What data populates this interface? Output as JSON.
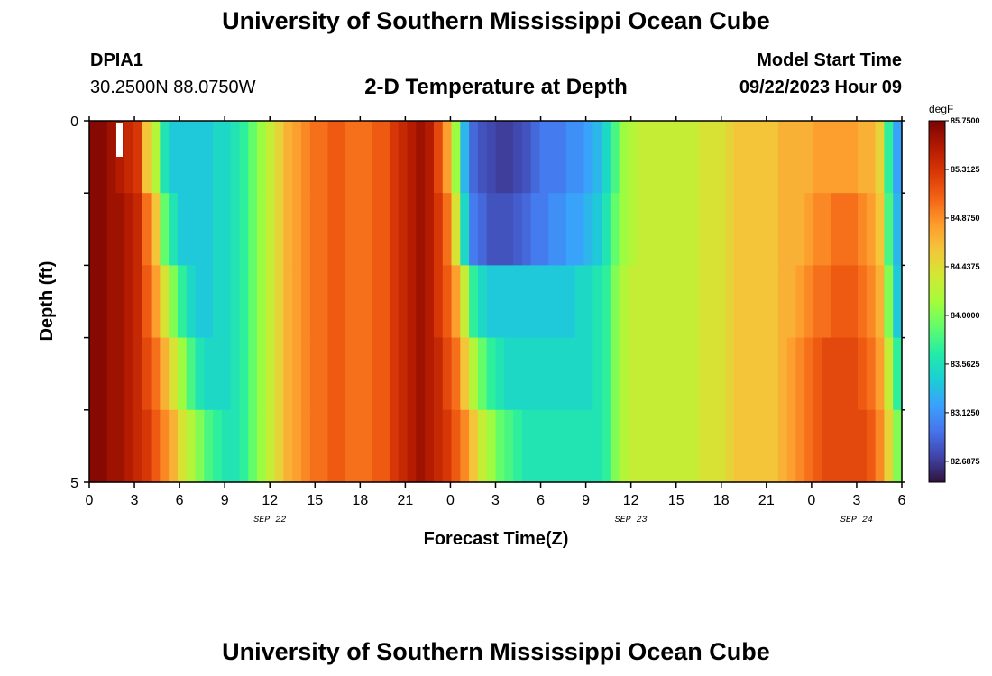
{
  "header": {
    "title": "University of Southern Mississippi Ocean Cube",
    "station_id": "DPIA1",
    "coordinates": "30.2500N  88.0750W",
    "plot_title": "2-D Temperature at Depth",
    "model_start_label": "Model Start Time",
    "model_start_value": "09/22/2023 Hour 09"
  },
  "footer": {
    "title": "University of Southern Mississippi Ocean Cube"
  },
  "chart_data": {
    "type": "heatmap",
    "title": "2-D Temperature at Depth",
    "xlabel": "Forecast Time(Z)",
    "ylabel": "Depth (ft)",
    "x_tick_labels": [
      "0",
      "3",
      "6",
      "9",
      "12",
      "15",
      "18",
      "21",
      "0",
      "3",
      "6",
      "9",
      "12",
      "15",
      "18",
      "21",
      "0",
      "3",
      "6"
    ],
    "y_tick_labels": [
      "0",
      "5"
    ],
    "ylim": [
      0,
      5
    ],
    "date_labels": [
      {
        "label": "SEP 22",
        "hour": 12
      },
      {
        "label": "SEP 23",
        "hour": 36
      },
      {
        "label": "SEP 24",
        "hour": 51
      }
    ],
    "hours_total": 54,
    "depth_layers": 5,
    "colorbar": {
      "unit": "degF",
      "min": 82.5,
      "max": 85.75,
      "tick_labels": [
        "85.7500",
        "85.3125",
        "84.8750",
        "84.4375",
        "84.0000",
        "83.5625",
        "83.1250",
        "82.6875"
      ],
      "colors": [
        "#30123b",
        "#4145ab",
        "#4675ed",
        "#39a2fc",
        "#1bcfd4",
        "#24eca6",
        "#61fc6c",
        "#a4fc3b",
        "#d1e834",
        "#f3c63a",
        "#fe9b2d",
        "#f36315",
        "#d93806",
        "#b11901",
        "#7a0403"
      ]
    },
    "values": [
      [
        85.7,
        85.7,
        85.6,
        85.5,
        85.4,
        85.3,
        84.6,
        84.2,
        83.6,
        83.4,
        83.4,
        83.4,
        83.4,
        83.4,
        83.5,
        83.5,
        83.6,
        83.7,
        83.9,
        84.1,
        84.3,
        84.5,
        84.7,
        84.8,
        84.9,
        85.0,
        85.0,
        85.1,
        85.1,
        85.0,
        85.0,
        85.0,
        85.1,
        85.1,
        85.3,
        85.4,
        85.5,
        85.6,
        85.5,
        85.2,
        84.8,
        84.1,
        83.3,
        82.9,
        82.8,
        82.75,
        82.7,
        82.7,
        82.75,
        82.8,
        82.9,
        83.0,
        83.0,
        83.0,
        83.1,
        83.1,
        83.2,
        83.3,
        83.5,
        83.8,
        84.1,
        84.2,
        84.3,
        84.3,
        84.3,
        84.3,
        84.3,
        84.3,
        84.3,
        84.4,
        84.4,
        84.4,
        84.5,
        84.6,
        84.6,
        84.6,
        84.6,
        84.6,
        84.7,
        84.7,
        84.7,
        84.7,
        84.8,
        84.8,
        84.8,
        84.8,
        84.8,
        84.7,
        84.7,
        84.5,
        83.7,
        83.2
      ],
      [
        85.7,
        85.7,
        85.6,
        85.6,
        85.5,
        85.4,
        85.0,
        84.6,
        83.9,
        83.6,
        83.4,
        83.4,
        83.4,
        83.4,
        83.5,
        83.5,
        83.6,
        83.7,
        83.9,
        84.1,
        84.3,
        84.5,
        84.7,
        84.8,
        84.9,
        85.0,
        85.0,
        85.1,
        85.1,
        85.0,
        85.0,
        85.0,
        85.1,
        85.1,
        85.3,
        85.4,
        85.5,
        85.6,
        85.5,
        85.3,
        85.0,
        84.4,
        83.5,
        83.0,
        82.9,
        82.8,
        82.8,
        82.8,
        82.85,
        82.9,
        83.0,
        83.0,
        83.1,
        83.1,
        83.2,
        83.2,
        83.3,
        83.4,
        83.6,
        83.9,
        84.1,
        84.2,
        84.3,
        84.3,
        84.3,
        84.3,
        84.3,
        84.3,
        84.3,
        84.4,
        84.4,
        84.4,
        84.5,
        84.6,
        84.6,
        84.6,
        84.6,
        84.6,
        84.7,
        84.7,
        84.7,
        84.8,
        84.9,
        84.9,
        85.0,
        85.0,
        85.0,
        84.9,
        84.8,
        84.6,
        83.8,
        83.3
      ],
      [
        85.7,
        85.7,
        85.6,
        85.6,
        85.5,
        85.4,
        85.1,
        84.8,
        84.4,
        84.0,
        83.7,
        83.5,
        83.4,
        83.4,
        83.5,
        83.5,
        83.6,
        83.7,
        83.9,
        84.1,
        84.3,
        84.5,
        84.7,
        84.8,
        84.9,
        85.0,
        85.0,
        85.1,
        85.1,
        85.0,
        85.0,
        85.0,
        85.1,
        85.1,
        85.3,
        85.4,
        85.5,
        85.6,
        85.5,
        85.3,
        85.1,
        84.8,
        84.3,
        83.7,
        83.5,
        83.4,
        83.4,
        83.4,
        83.4,
        83.4,
        83.4,
        83.4,
        83.4,
        83.4,
        83.4,
        83.5,
        83.5,
        83.6,
        83.7,
        84.0,
        84.2,
        84.3,
        84.3,
        84.3,
        84.3,
        84.3,
        84.3,
        84.3,
        84.3,
        84.4,
        84.4,
        84.4,
        84.5,
        84.6,
        84.6,
        84.6,
        84.6,
        84.6,
        84.7,
        84.7,
        84.8,
        84.9,
        85.0,
        85.0,
        85.1,
        85.1,
        85.1,
        85.0,
        84.9,
        84.7,
        84.0,
        83.4
      ],
      [
        85.7,
        85.7,
        85.6,
        85.6,
        85.5,
        85.4,
        85.2,
        85.0,
        84.7,
        84.4,
        84.1,
        83.8,
        83.6,
        83.5,
        83.5,
        83.5,
        83.6,
        83.7,
        83.9,
        84.1,
        84.3,
        84.5,
        84.7,
        84.8,
        84.9,
        85.0,
        85.0,
        85.1,
        85.1,
        85.0,
        85.0,
        85.0,
        85.1,
        85.1,
        85.3,
        85.4,
        85.5,
        85.6,
        85.5,
        85.4,
        85.2,
        85.0,
        84.6,
        84.2,
        83.9,
        83.7,
        83.6,
        83.5,
        83.5,
        83.5,
        83.5,
        83.5,
        83.5,
        83.5,
        83.5,
        83.5,
        83.5,
        83.6,
        83.7,
        84.0,
        84.2,
        84.3,
        84.3,
        84.3,
        84.3,
        84.3,
        84.3,
        84.3,
        84.3,
        84.4,
        84.4,
        84.4,
        84.5,
        84.6,
        84.6,
        84.6,
        84.6,
        84.6,
        84.7,
        84.8,
        84.9,
        85.0,
        85.1,
        85.2,
        85.2,
        85.2,
        85.2,
        85.1,
        85.0,
        84.8,
        84.3,
        83.7
      ],
      [
        85.7,
        85.7,
        85.6,
        85.6,
        85.5,
        85.4,
        85.3,
        85.1,
        84.9,
        84.7,
        84.4,
        84.2,
        84.0,
        83.8,
        83.7,
        83.6,
        83.6,
        83.7,
        83.9,
        84.1,
        84.3,
        84.5,
        84.7,
        84.8,
        84.9,
        85.0,
        85.0,
        85.1,
        85.1,
        85.0,
        85.0,
        85.0,
        85.1,
        85.1,
        85.3,
        85.4,
        85.5,
        85.6,
        85.5,
        85.4,
        85.3,
        85.1,
        84.9,
        84.6,
        84.3,
        84.1,
        83.9,
        83.8,
        83.7,
        83.6,
        83.6,
        83.6,
        83.6,
        83.6,
        83.6,
        83.6,
        83.6,
        83.6,
        83.7,
        84.0,
        84.2,
        84.3,
        84.3,
        84.3,
        84.3,
        84.3,
        84.3,
        84.3,
        84.3,
        84.4,
        84.4,
        84.4,
        84.5,
        84.6,
        84.6,
        84.6,
        84.6,
        84.6,
        84.7,
        84.8,
        84.9,
        85.0,
        85.1,
        85.2,
        85.2,
        85.2,
        85.2,
        85.2,
        85.1,
        84.9,
        84.5,
        84.0
      ]
    ]
  }
}
